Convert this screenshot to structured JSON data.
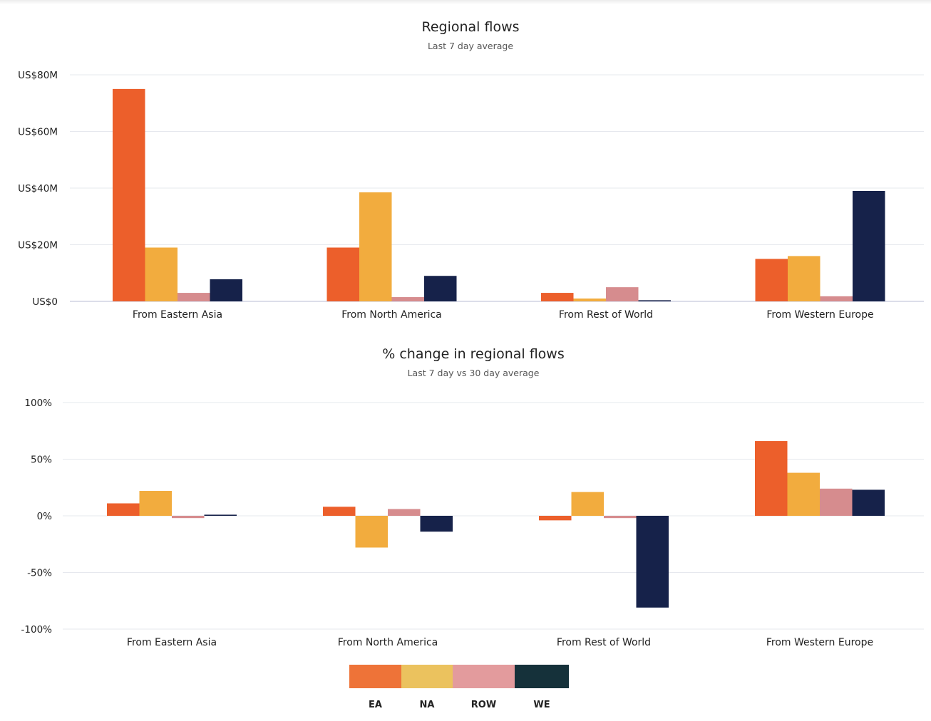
{
  "chart_data": [
    {
      "type": "bar",
      "title": "Regional flows",
      "subtitle": "Last 7 day average",
      "categories": [
        "From Eastern Asia",
        "From North America",
        "From Rest of World",
        "From Western Europe"
      ],
      "series": [
        {
          "name": "EA",
          "color": "#ec5f2b",
          "values": [
            75,
            19,
            3,
            15
          ]
        },
        {
          "name": "NA",
          "color": "#f2ac3e",
          "values": [
            19,
            38.5,
            1,
            16
          ]
        },
        {
          "name": "ROW",
          "color": "#d68c8e",
          "values": [
            3,
            1.5,
            5,
            1.8
          ]
        },
        {
          "name": "WE",
          "color": "#16224a",
          "values": [
            7.8,
            9,
            0.4,
            39
          ]
        }
      ],
      "ylim": [
        0,
        80
      ],
      "yticks": [
        0,
        20,
        40,
        60,
        80
      ],
      "ytick_labels": [
        "US$0",
        "US$20M",
        "US$40M",
        "US$60M",
        "US$80M"
      ],
      "grid": true
    },
    {
      "type": "bar",
      "title": "% change in regional flows",
      "subtitle": "Last 7 day vs 30 day average",
      "categories": [
        "From Eastern Asia",
        "From North America",
        "From Rest of World",
        "From Western Europe"
      ],
      "series": [
        {
          "name": "EA",
          "color": "#ec5f2b",
          "values": [
            11,
            8,
            -4,
            66
          ]
        },
        {
          "name": "NA",
          "color": "#f2ac3e",
          "values": [
            22,
            -28,
            21,
            38
          ]
        },
        {
          "name": "ROW",
          "color": "#d68c8e",
          "values": [
            -2,
            6,
            -2,
            24
          ]
        },
        {
          "name": "WE",
          "color": "#16224a",
          "values": [
            1,
            -14,
            -81,
            23
          ]
        }
      ],
      "ylim": [
        -100,
        100
      ],
      "yticks": [
        -100,
        -50,
        0,
        50,
        100
      ],
      "ytick_labels": [
        "-100%",
        "-50%",
        "0%",
        "50%",
        "100%"
      ],
      "grid": true
    }
  ],
  "legend": {
    "placement": "bottom-center",
    "items": [
      {
        "label": "EA",
        "color": "#ee7338"
      },
      {
        "label": "NA",
        "color": "#ebc25e"
      },
      {
        "label": "ROW",
        "color": "#e39b9d"
      },
      {
        "label": "WE",
        "color": "#15313a"
      }
    ]
  }
}
